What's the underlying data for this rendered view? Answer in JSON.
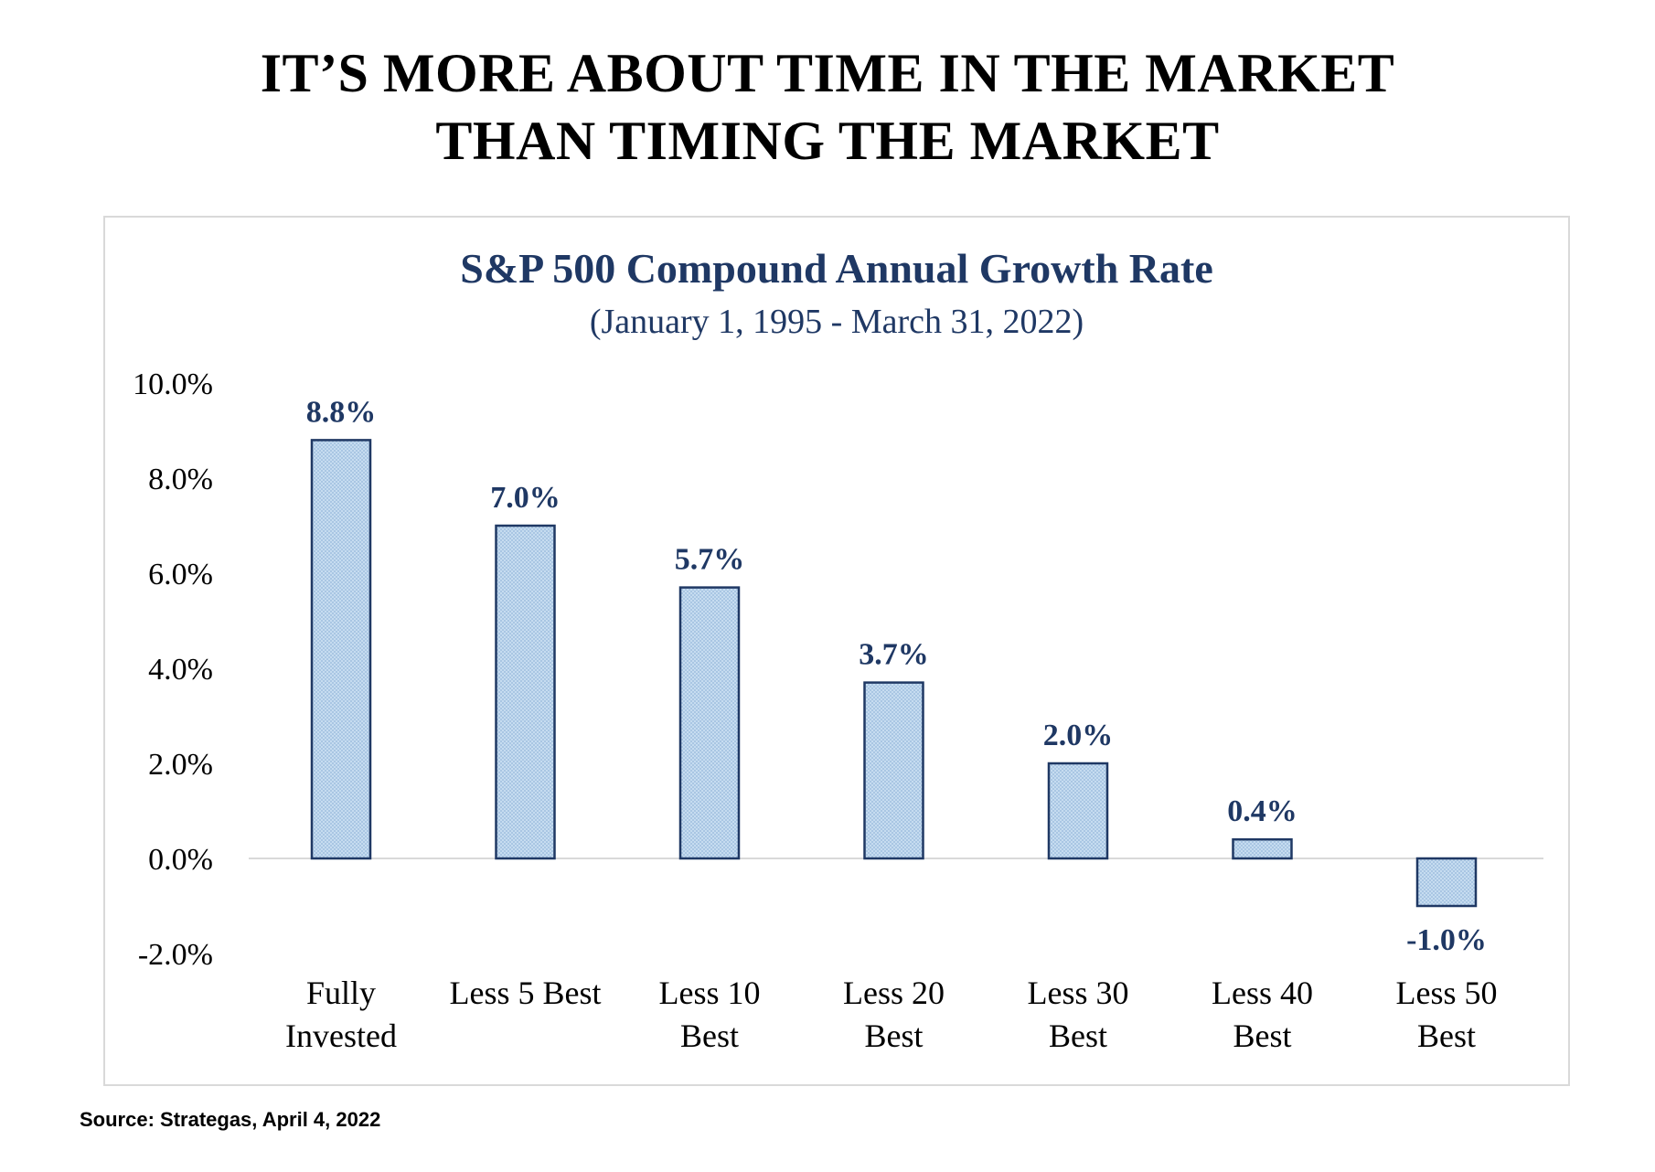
{
  "headline": {
    "line1": "IT’S MORE ABOUT TIME IN THE MARKET",
    "line2": "THAN TIMING THE MARKET"
  },
  "source": "Source:  Strategas, April 4, 2022",
  "colors": {
    "bar_fill": "#bdd7ee",
    "bar_stroke": "#1f3864",
    "label_color": "#1f3864",
    "axis_text": "#000000",
    "zero_line": "#d9d9d9"
  },
  "chart_data": {
    "type": "bar",
    "title": "S&P 500 Compound Annual Growth Rate",
    "subtitle": "(January 1, 1995 - March 31, 2022)",
    "xlabel": "",
    "ylabel": "",
    "ylim": [
      -2.0,
      10.0
    ],
    "yticks": [
      10.0,
      8.0,
      6.0,
      4.0,
      2.0,
      0.0,
      -2.0
    ],
    "ytick_labels": [
      "10.0%",
      "8.0%",
      "6.0%",
      "4.0%",
      "2.0%",
      "0.0%",
      "-2.0%"
    ],
    "grid": false,
    "legend": "none",
    "categories": [
      [
        "Fully",
        "Invested"
      ],
      [
        "Less 5 Best"
      ],
      [
        "Less 10",
        "Best"
      ],
      [
        "Less 20",
        "Best"
      ],
      [
        "Less 30",
        "Best"
      ],
      [
        "Less 40",
        "Best"
      ],
      [
        "Less 50",
        "Best"
      ]
    ],
    "values": [
      8.8,
      7.0,
      5.7,
      3.7,
      2.0,
      0.4,
      -1.0
    ],
    "data_labels": [
      "8.8%",
      "7.0%",
      "5.7%",
      "3.7%",
      "2.0%",
      "0.4%",
      "-1.0%"
    ]
  }
}
